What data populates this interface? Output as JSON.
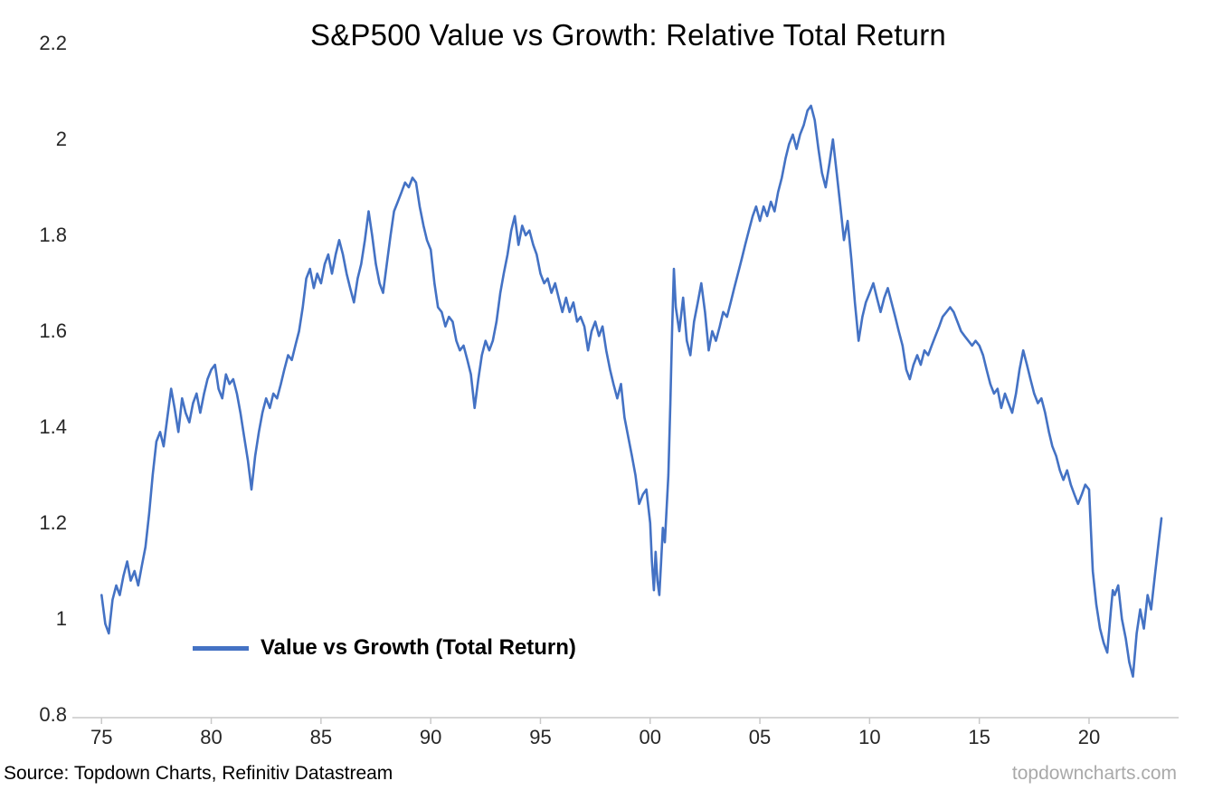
{
  "title": "S&P500 Value vs Growth: Relative Total Return",
  "footer": {
    "source": "Source: Topdown Charts, Refinitiv Datastream",
    "watermark": "topdowncharts.com"
  },
  "chart_data": {
    "type": "line",
    "title": "S&P500 Value vs Growth: Relative Total Return",
    "xlabel": "",
    "ylabel": "",
    "xlim": [
      1974,
      2024
    ],
    "ylim": [
      0.8,
      2.2
    ],
    "grid": false,
    "line_color": "#4472C4",
    "legend": {
      "position": "inside-bottom-left",
      "entries": [
        "Value vs Growth (Total Return)"
      ]
    },
    "x_ticks": {
      "values": [
        1975,
        1980,
        1985,
        1990,
        1995,
        2000,
        2005,
        2010,
        2015,
        2020
      ],
      "labels": [
        "75",
        "80",
        "85",
        "90",
        "95",
        "00",
        "05",
        "10",
        "15",
        "20"
      ]
    },
    "y_ticks": {
      "values": [
        0.8,
        1,
        1.2,
        1.4,
        1.6,
        1.8,
        2,
        2.2
      ],
      "labels": [
        "0.8",
        "1",
        "1.2",
        "1.4",
        "1.6",
        "1.8",
        "2",
        "2.2"
      ]
    },
    "series": [
      {
        "name": "Value vs Growth (Total Return)",
        "points": [
          [
            1975.0,
            1.05
          ],
          [
            1975.17,
            0.99
          ],
          [
            1975.33,
            0.97
          ],
          [
            1975.5,
            1.04
          ],
          [
            1975.67,
            1.07
          ],
          [
            1975.83,
            1.05
          ],
          [
            1976.0,
            1.09
          ],
          [
            1976.17,
            1.12
          ],
          [
            1976.33,
            1.08
          ],
          [
            1976.5,
            1.1
          ],
          [
            1976.67,
            1.07
          ],
          [
            1976.83,
            1.11
          ],
          [
            1977.0,
            1.15
          ],
          [
            1977.17,
            1.22
          ],
          [
            1977.33,
            1.3
          ],
          [
            1977.5,
            1.37
          ],
          [
            1977.67,
            1.39
          ],
          [
            1977.83,
            1.36
          ],
          [
            1978.0,
            1.42
          ],
          [
            1978.17,
            1.48
          ],
          [
            1978.33,
            1.44
          ],
          [
            1978.5,
            1.39
          ],
          [
            1978.67,
            1.46
          ],
          [
            1978.83,
            1.43
          ],
          [
            1979.0,
            1.41
          ],
          [
            1979.17,
            1.45
          ],
          [
            1979.33,
            1.47
          ],
          [
            1979.5,
            1.43
          ],
          [
            1979.67,
            1.47
          ],
          [
            1979.83,
            1.5
          ],
          [
            1980.0,
            1.52
          ],
          [
            1980.17,
            1.53
          ],
          [
            1980.33,
            1.48
          ],
          [
            1980.5,
            1.46
          ],
          [
            1980.67,
            1.51
          ],
          [
            1980.83,
            1.49
          ],
          [
            1981.0,
            1.5
          ],
          [
            1981.17,
            1.47
          ],
          [
            1981.33,
            1.43
          ],
          [
            1981.5,
            1.38
          ],
          [
            1981.67,
            1.33
          ],
          [
            1981.83,
            1.27
          ],
          [
            1982.0,
            1.34
          ],
          [
            1982.17,
            1.39
          ],
          [
            1982.33,
            1.43
          ],
          [
            1982.5,
            1.46
          ],
          [
            1982.67,
            1.44
          ],
          [
            1982.83,
            1.47
          ],
          [
            1983.0,
            1.46
          ],
          [
            1983.17,
            1.49
          ],
          [
            1983.33,
            1.52
          ],
          [
            1983.5,
            1.55
          ],
          [
            1983.67,
            1.54
          ],
          [
            1983.83,
            1.57
          ],
          [
            1984.0,
            1.6
          ],
          [
            1984.17,
            1.65
          ],
          [
            1984.33,
            1.71
          ],
          [
            1984.5,
            1.73
          ],
          [
            1984.67,
            1.69
          ],
          [
            1984.83,
            1.72
          ],
          [
            1985.0,
            1.7
          ],
          [
            1985.17,
            1.74
          ],
          [
            1985.33,
            1.76
          ],
          [
            1985.5,
            1.72
          ],
          [
            1985.67,
            1.76
          ],
          [
            1985.83,
            1.79
          ],
          [
            1986.0,
            1.76
          ],
          [
            1986.17,
            1.72
          ],
          [
            1986.33,
            1.69
          ],
          [
            1986.5,
            1.66
          ],
          [
            1986.67,
            1.71
          ],
          [
            1986.83,
            1.74
          ],
          [
            1987.0,
            1.79
          ],
          [
            1987.17,
            1.85
          ],
          [
            1987.33,
            1.8
          ],
          [
            1987.5,
            1.74
          ],
          [
            1987.67,
            1.7
          ],
          [
            1987.83,
            1.68
          ],
          [
            1988.0,
            1.74
          ],
          [
            1988.17,
            1.8
          ],
          [
            1988.33,
            1.85
          ],
          [
            1988.5,
            1.87
          ],
          [
            1988.67,
            1.89
          ],
          [
            1988.83,
            1.91
          ],
          [
            1989.0,
            1.9
          ],
          [
            1989.17,
            1.92
          ],
          [
            1989.33,
            1.91
          ],
          [
            1989.5,
            1.86
          ],
          [
            1989.67,
            1.82
          ],
          [
            1989.83,
            1.79
          ],
          [
            1990.0,
            1.77
          ],
          [
            1990.17,
            1.7
          ],
          [
            1990.33,
            1.65
          ],
          [
            1990.5,
            1.64
          ],
          [
            1990.67,
            1.61
          ],
          [
            1990.83,
            1.63
          ],
          [
            1991.0,
            1.62
          ],
          [
            1991.17,
            1.58
          ],
          [
            1991.33,
            1.56
          ],
          [
            1991.5,
            1.57
          ],
          [
            1991.67,
            1.54
          ],
          [
            1991.83,
            1.51
          ],
          [
            1992.0,
            1.44
          ],
          [
            1992.17,
            1.5
          ],
          [
            1992.33,
            1.55
          ],
          [
            1992.5,
            1.58
          ],
          [
            1992.67,
            1.56
          ],
          [
            1992.83,
            1.58
          ],
          [
            1993.0,
            1.62
          ],
          [
            1993.17,
            1.68
          ],
          [
            1993.33,
            1.72
          ],
          [
            1993.5,
            1.76
          ],
          [
            1993.67,
            1.81
          ],
          [
            1993.83,
            1.84
          ],
          [
            1994.0,
            1.78
          ],
          [
            1994.17,
            1.82
          ],
          [
            1994.33,
            1.8
          ],
          [
            1994.5,
            1.81
          ],
          [
            1994.67,
            1.78
          ],
          [
            1994.83,
            1.76
          ],
          [
            1995.0,
            1.72
          ],
          [
            1995.17,
            1.7
          ],
          [
            1995.33,
            1.71
          ],
          [
            1995.5,
            1.68
          ],
          [
            1995.67,
            1.7
          ],
          [
            1995.83,
            1.67
          ],
          [
            1996.0,
            1.64
          ],
          [
            1996.17,
            1.67
          ],
          [
            1996.33,
            1.64
          ],
          [
            1996.5,
            1.66
          ],
          [
            1996.67,
            1.62
          ],
          [
            1996.83,
            1.63
          ],
          [
            1997.0,
            1.61
          ],
          [
            1997.17,
            1.56
          ],
          [
            1997.33,
            1.6
          ],
          [
            1997.5,
            1.62
          ],
          [
            1997.67,
            1.59
          ],
          [
            1997.83,
            1.61
          ],
          [
            1998.0,
            1.56
          ],
          [
            1998.17,
            1.52
          ],
          [
            1998.33,
            1.49
          ],
          [
            1998.5,
            1.46
          ],
          [
            1998.67,
            1.49
          ],
          [
            1998.83,
            1.42
          ],
          [
            1999.0,
            1.38
          ],
          [
            1999.17,
            1.34
          ],
          [
            1999.33,
            1.3
          ],
          [
            1999.5,
            1.24
          ],
          [
            1999.67,
            1.26
          ],
          [
            1999.83,
            1.27
          ],
          [
            2000.0,
            1.2
          ],
          [
            2000.08,
            1.12
          ],
          [
            2000.17,
            1.06
          ],
          [
            2000.25,
            1.14
          ],
          [
            2000.33,
            1.08
          ],
          [
            2000.42,
            1.05
          ],
          [
            2000.5,
            1.12
          ],
          [
            2000.58,
            1.19
          ],
          [
            2000.67,
            1.16
          ],
          [
            2000.83,
            1.3
          ],
          [
            2000.92,
            1.45
          ],
          [
            2001.0,
            1.6
          ],
          [
            2001.08,
            1.73
          ],
          [
            2001.17,
            1.65
          ],
          [
            2001.33,
            1.6
          ],
          [
            2001.5,
            1.67
          ],
          [
            2001.67,
            1.58
          ],
          [
            2001.83,
            1.55
          ],
          [
            2002.0,
            1.62
          ],
          [
            2002.17,
            1.66
          ],
          [
            2002.33,
            1.7
          ],
          [
            2002.5,
            1.64
          ],
          [
            2002.67,
            1.56
          ],
          [
            2002.83,
            1.6
          ],
          [
            2003.0,
            1.58
          ],
          [
            2003.17,
            1.61
          ],
          [
            2003.33,
            1.64
          ],
          [
            2003.5,
            1.63
          ],
          [
            2003.67,
            1.66
          ],
          [
            2003.83,
            1.69
          ],
          [
            2004.0,
            1.72
          ],
          [
            2004.17,
            1.75
          ],
          [
            2004.33,
            1.78
          ],
          [
            2004.5,
            1.81
          ],
          [
            2004.67,
            1.84
          ],
          [
            2004.83,
            1.86
          ],
          [
            2005.0,
            1.83
          ],
          [
            2005.17,
            1.86
          ],
          [
            2005.33,
            1.84
          ],
          [
            2005.5,
            1.87
          ],
          [
            2005.67,
            1.85
          ],
          [
            2005.83,
            1.89
          ],
          [
            2006.0,
            1.92
          ],
          [
            2006.17,
            1.96
          ],
          [
            2006.33,
            1.99
          ],
          [
            2006.5,
            2.01
          ],
          [
            2006.67,
            1.98
          ],
          [
            2006.83,
            2.01
          ],
          [
            2007.0,
            2.03
          ],
          [
            2007.17,
            2.06
          ],
          [
            2007.33,
            2.07
          ],
          [
            2007.5,
            2.04
          ],
          [
            2007.67,
            1.98
          ],
          [
            2007.83,
            1.93
          ],
          [
            2008.0,
            1.9
          ],
          [
            2008.17,
            1.95
          ],
          [
            2008.33,
            2.0
          ],
          [
            2008.5,
            1.93
          ],
          [
            2008.67,
            1.86
          ],
          [
            2008.83,
            1.79
          ],
          [
            2009.0,
            1.83
          ],
          [
            2009.17,
            1.75
          ],
          [
            2009.33,
            1.66
          ],
          [
            2009.5,
            1.58
          ],
          [
            2009.67,
            1.63
          ],
          [
            2009.83,
            1.66
          ],
          [
            2010.0,
            1.68
          ],
          [
            2010.17,
            1.7
          ],
          [
            2010.33,
            1.67
          ],
          [
            2010.5,
            1.64
          ],
          [
            2010.67,
            1.67
          ],
          [
            2010.83,
            1.69
          ],
          [
            2011.0,
            1.66
          ],
          [
            2011.17,
            1.63
          ],
          [
            2011.33,
            1.6
          ],
          [
            2011.5,
            1.57
          ],
          [
            2011.67,
            1.52
          ],
          [
            2011.83,
            1.5
          ],
          [
            2012.0,
            1.53
          ],
          [
            2012.17,
            1.55
          ],
          [
            2012.33,
            1.53
          ],
          [
            2012.5,
            1.56
          ],
          [
            2012.67,
            1.55
          ],
          [
            2012.83,
            1.57
          ],
          [
            2013.0,
            1.59
          ],
          [
            2013.17,
            1.61
          ],
          [
            2013.33,
            1.63
          ],
          [
            2013.5,
            1.64
          ],
          [
            2013.67,
            1.65
          ],
          [
            2013.83,
            1.64
          ],
          [
            2014.0,
            1.62
          ],
          [
            2014.17,
            1.6
          ],
          [
            2014.33,
            1.59
          ],
          [
            2014.5,
            1.58
          ],
          [
            2014.67,
            1.57
          ],
          [
            2014.83,
            1.58
          ],
          [
            2015.0,
            1.57
          ],
          [
            2015.17,
            1.55
          ],
          [
            2015.33,
            1.52
          ],
          [
            2015.5,
            1.49
          ],
          [
            2015.67,
            1.47
          ],
          [
            2015.83,
            1.48
          ],
          [
            2016.0,
            1.44
          ],
          [
            2016.17,
            1.47
          ],
          [
            2016.33,
            1.45
          ],
          [
            2016.5,
            1.43
          ],
          [
            2016.67,
            1.47
          ],
          [
            2016.83,
            1.52
          ],
          [
            2017.0,
            1.56
          ],
          [
            2017.17,
            1.53
          ],
          [
            2017.33,
            1.5
          ],
          [
            2017.5,
            1.47
          ],
          [
            2017.67,
            1.45
          ],
          [
            2017.83,
            1.46
          ],
          [
            2018.0,
            1.43
          ],
          [
            2018.17,
            1.39
          ],
          [
            2018.33,
            1.36
          ],
          [
            2018.5,
            1.34
          ],
          [
            2018.67,
            1.31
          ],
          [
            2018.83,
            1.29
          ],
          [
            2019.0,
            1.31
          ],
          [
            2019.17,
            1.28
          ],
          [
            2019.33,
            1.26
          ],
          [
            2019.5,
            1.24
          ],
          [
            2019.67,
            1.26
          ],
          [
            2019.83,
            1.28
          ],
          [
            2020.0,
            1.27
          ],
          [
            2020.17,
            1.1
          ],
          [
            2020.33,
            1.03
          ],
          [
            2020.5,
            0.98
          ],
          [
            2020.67,
            0.95
          ],
          [
            2020.83,
            0.93
          ],
          [
            2021.0,
            1.02
          ],
          [
            2021.08,
            1.06
          ],
          [
            2021.17,
            1.05
          ],
          [
            2021.33,
            1.07
          ],
          [
            2021.5,
            1.0
          ],
          [
            2021.67,
            0.96
          ],
          [
            2021.83,
            0.91
          ],
          [
            2022.0,
            0.88
          ],
          [
            2022.17,
            0.97
          ],
          [
            2022.33,
            1.02
          ],
          [
            2022.5,
            0.98
          ],
          [
            2022.67,
            1.05
          ],
          [
            2022.83,
            1.02
          ],
          [
            2023.0,
            1.09
          ],
          [
            2023.17,
            1.16
          ],
          [
            2023.3,
            1.21
          ]
        ]
      }
    ]
  }
}
